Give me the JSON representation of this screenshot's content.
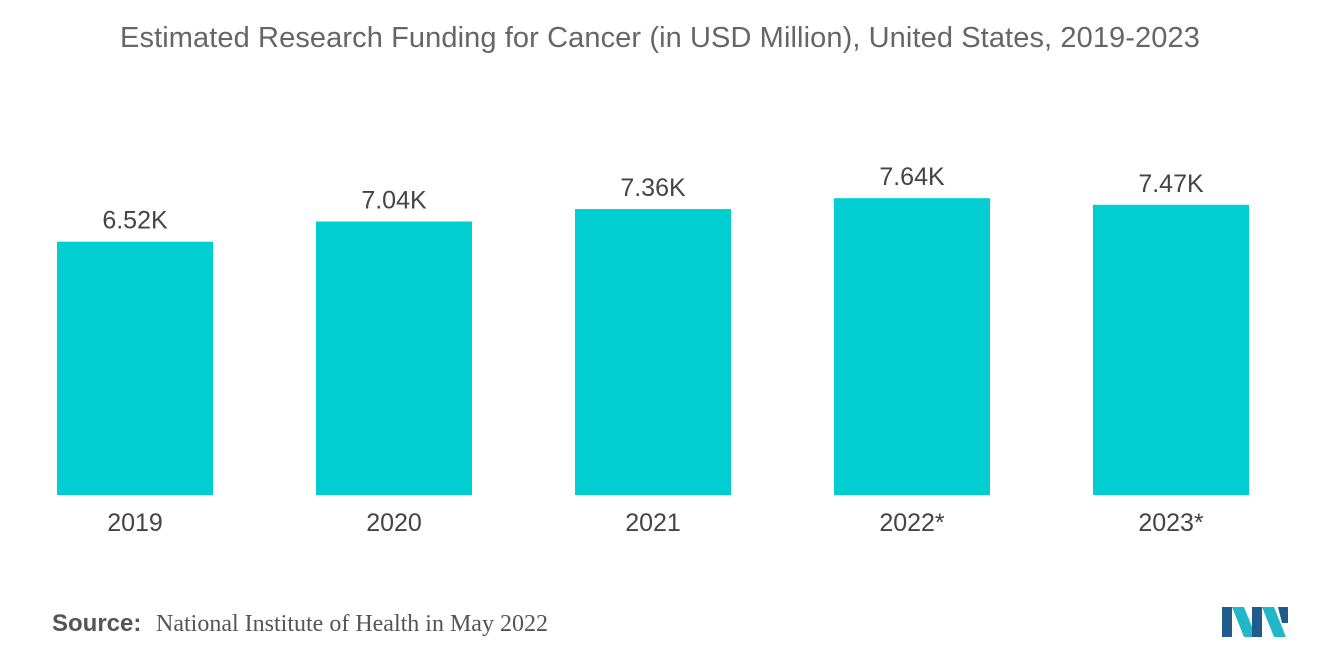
{
  "title": "Estimated Research Funding for Cancer (in USD Million), United States, 2019-2023",
  "source": {
    "label": "Source:",
    "text": "National Institute of Health in May 2022"
  },
  "colors": {
    "bar": "#00CED1",
    "label_text": "#444444",
    "title_text": "#666666",
    "logo_dark": "#1F5C8C",
    "logo_light": "#21B7C9"
  },
  "logo": {
    "icon": "company-logo-icon"
  },
  "chart_data": {
    "type": "bar",
    "title": "Estimated Research Funding for Cancer (in USD Million), United States, 2019-2023",
    "categories": [
      "2019",
      "2020",
      "2021",
      "2022*",
      "2023*"
    ],
    "values": [
      6520,
      7040,
      7360,
      7640,
      7470
    ],
    "value_labels": [
      "6.52K",
      "7.04K",
      "7.36K",
      "7.64K",
      "7.47K"
    ],
    "xlabel": "",
    "ylabel": "",
    "ylim": [
      0,
      10000
    ],
    "grid": false,
    "legend": "none"
  }
}
